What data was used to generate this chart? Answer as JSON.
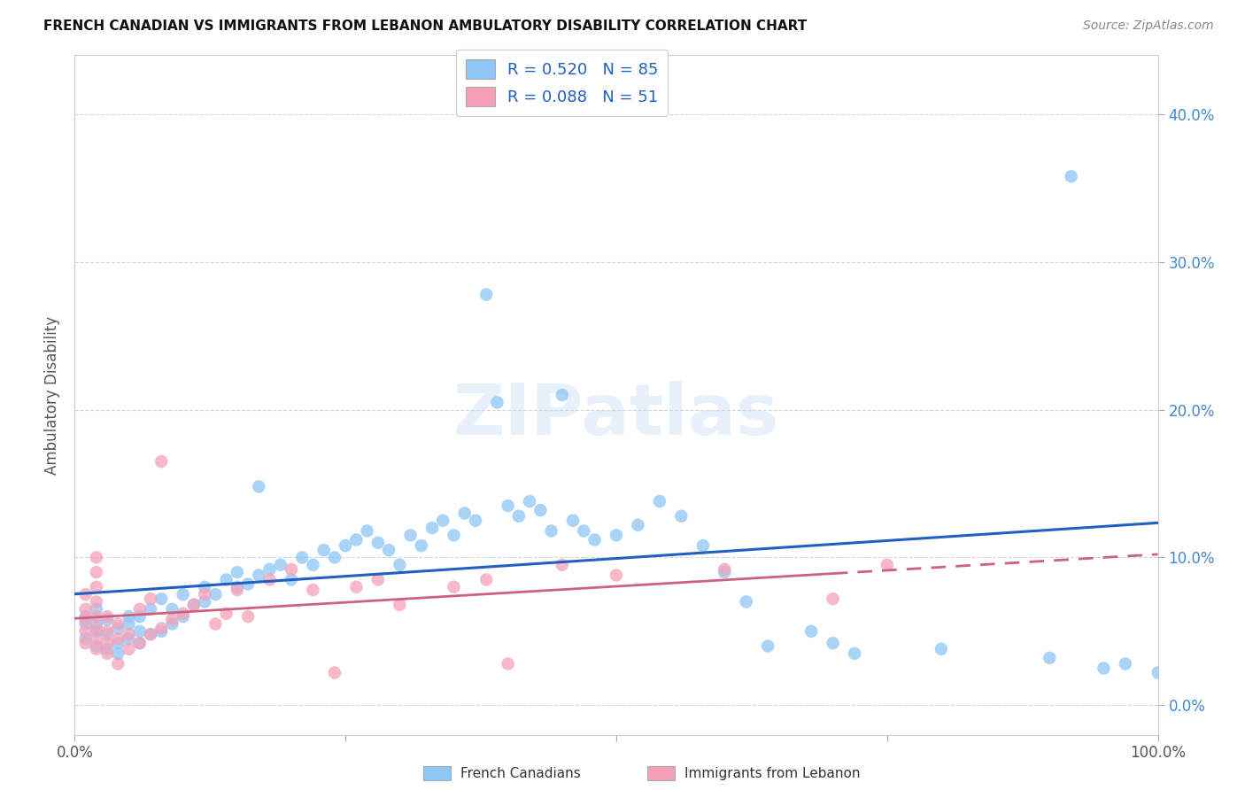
{
  "title": "FRENCH CANADIAN VS IMMIGRANTS FROM LEBANON AMBULATORY DISABILITY CORRELATION CHART",
  "source": "Source: ZipAtlas.com",
  "ylabel": "Ambulatory Disability",
  "yticks": [
    "0.0%",
    "10.0%",
    "20.0%",
    "30.0%",
    "40.0%"
  ],
  "ytick_vals": [
    0.0,
    0.1,
    0.2,
    0.3,
    0.4
  ],
  "xlim": [
    0.0,
    1.0
  ],
  "ylim": [
    -0.02,
    0.44
  ],
  "legend_label_blue": "R = 0.520   N = 85",
  "legend_label_pink": "R = 0.088   N = 51",
  "french_canadians_color": "#8ec6f5",
  "immigrants_lebanon_color": "#f5a0b8",
  "trend_blue_color": "#2060c0",
  "trend_pink_color": "#d06080",
  "watermark": "ZIPatlas",
  "blue_x": [
    0.01,
    0.01,
    0.01,
    0.02,
    0.02,
    0.02,
    0.02,
    0.03,
    0.03,
    0.03,
    0.04,
    0.04,
    0.04,
    0.05,
    0.05,
    0.05,
    0.06,
    0.06,
    0.06,
    0.07,
    0.07,
    0.08,
    0.08,
    0.09,
    0.09,
    0.1,
    0.1,
    0.11,
    0.12,
    0.12,
    0.13,
    0.14,
    0.15,
    0.15,
    0.16,
    0.17,
    0.17,
    0.18,
    0.19,
    0.2,
    0.21,
    0.22,
    0.23,
    0.24,
    0.25,
    0.26,
    0.27,
    0.28,
    0.29,
    0.3,
    0.31,
    0.32,
    0.33,
    0.34,
    0.35,
    0.36,
    0.37,
    0.38,
    0.39,
    0.4,
    0.41,
    0.42,
    0.43,
    0.44,
    0.45,
    0.46,
    0.47,
    0.48,
    0.5,
    0.52,
    0.54,
    0.56,
    0.58,
    0.6,
    0.62,
    0.64,
    0.68,
    0.7,
    0.72,
    0.8,
    0.9,
    0.92,
    0.95,
    0.97,
    1.0
  ],
  "blue_y": [
    0.045,
    0.055,
    0.06,
    0.04,
    0.05,
    0.055,
    0.065,
    0.038,
    0.048,
    0.058,
    0.042,
    0.052,
    0.035,
    0.045,
    0.055,
    0.06,
    0.042,
    0.05,
    0.06,
    0.048,
    0.065,
    0.05,
    0.072,
    0.055,
    0.065,
    0.06,
    0.075,
    0.068,
    0.07,
    0.08,
    0.075,
    0.085,
    0.08,
    0.09,
    0.082,
    0.088,
    0.148,
    0.092,
    0.095,
    0.085,
    0.1,
    0.095,
    0.105,
    0.1,
    0.108,
    0.112,
    0.118,
    0.11,
    0.105,
    0.095,
    0.115,
    0.108,
    0.12,
    0.125,
    0.115,
    0.13,
    0.125,
    0.278,
    0.205,
    0.135,
    0.128,
    0.138,
    0.132,
    0.118,
    0.21,
    0.125,
    0.118,
    0.112,
    0.115,
    0.122,
    0.138,
    0.128,
    0.108,
    0.09,
    0.07,
    0.04,
    0.05,
    0.042,
    0.035,
    0.038,
    0.032,
    0.358,
    0.025,
    0.028,
    0.022
  ],
  "pink_x": [
    0.01,
    0.01,
    0.01,
    0.01,
    0.01,
    0.02,
    0.02,
    0.02,
    0.02,
    0.02,
    0.02,
    0.02,
    0.02,
    0.03,
    0.03,
    0.03,
    0.03,
    0.04,
    0.04,
    0.04,
    0.05,
    0.05,
    0.06,
    0.06,
    0.07,
    0.07,
    0.08,
    0.08,
    0.09,
    0.1,
    0.11,
    0.12,
    0.13,
    0.14,
    0.15,
    0.16,
    0.18,
    0.2,
    0.22,
    0.24,
    0.26,
    0.28,
    0.3,
    0.35,
    0.38,
    0.4,
    0.45,
    0.5,
    0.6,
    0.7,
    0.75
  ],
  "pink_y": [
    0.042,
    0.05,
    0.058,
    0.065,
    0.075,
    0.038,
    0.045,
    0.052,
    0.06,
    0.07,
    0.08,
    0.09,
    0.1,
    0.042,
    0.05,
    0.06,
    0.035,
    0.045,
    0.055,
    0.028,
    0.038,
    0.048,
    0.042,
    0.065,
    0.048,
    0.072,
    0.052,
    0.165,
    0.058,
    0.062,
    0.068,
    0.075,
    0.055,
    0.062,
    0.078,
    0.06,
    0.085,
    0.092,
    0.078,
    0.022,
    0.08,
    0.085,
    0.068,
    0.08,
    0.085,
    0.028,
    0.095,
    0.088,
    0.092,
    0.072,
    0.095
  ]
}
